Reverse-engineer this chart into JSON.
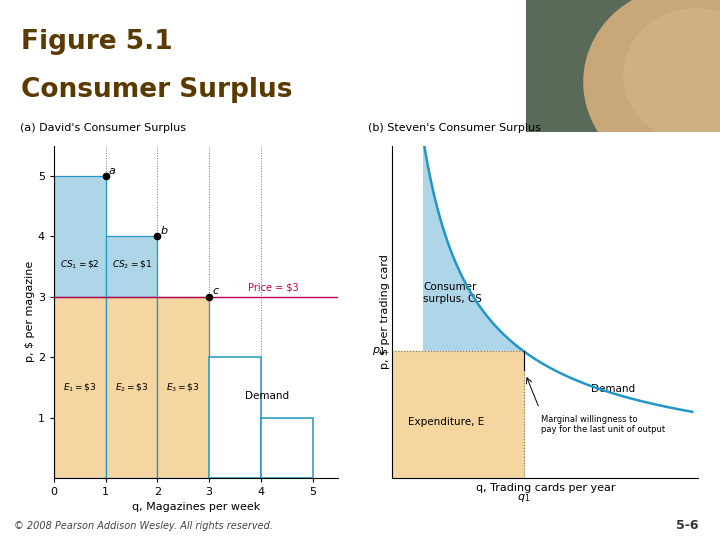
{
  "title_line1": "Figure 5.1",
  "title_line2": "Consumer Surplus",
  "title_color": "#5B3A00",
  "title_bar_color": "#B8960C",
  "bg_color": "#FFFFFF",
  "panel_a_title": "(a) David's Consumer Surplus",
  "panel_b_title": "(b) Steven's Consumer Surplus",
  "footer_text": "© 2008 Pearson Addison Wesley. All rights reserved.",
  "slide_number": "5-6",
  "cs_fill_color": "#AED6E8",
  "expenditure_fill_color": "#F5D5A0",
  "price_line_color": "#C0004E",
  "demand_line_color": "#2196C8",
  "dotted_line_color": "#777777",
  "header_img_left": "#5A6B5A",
  "header_img_rock": "#C8A070"
}
